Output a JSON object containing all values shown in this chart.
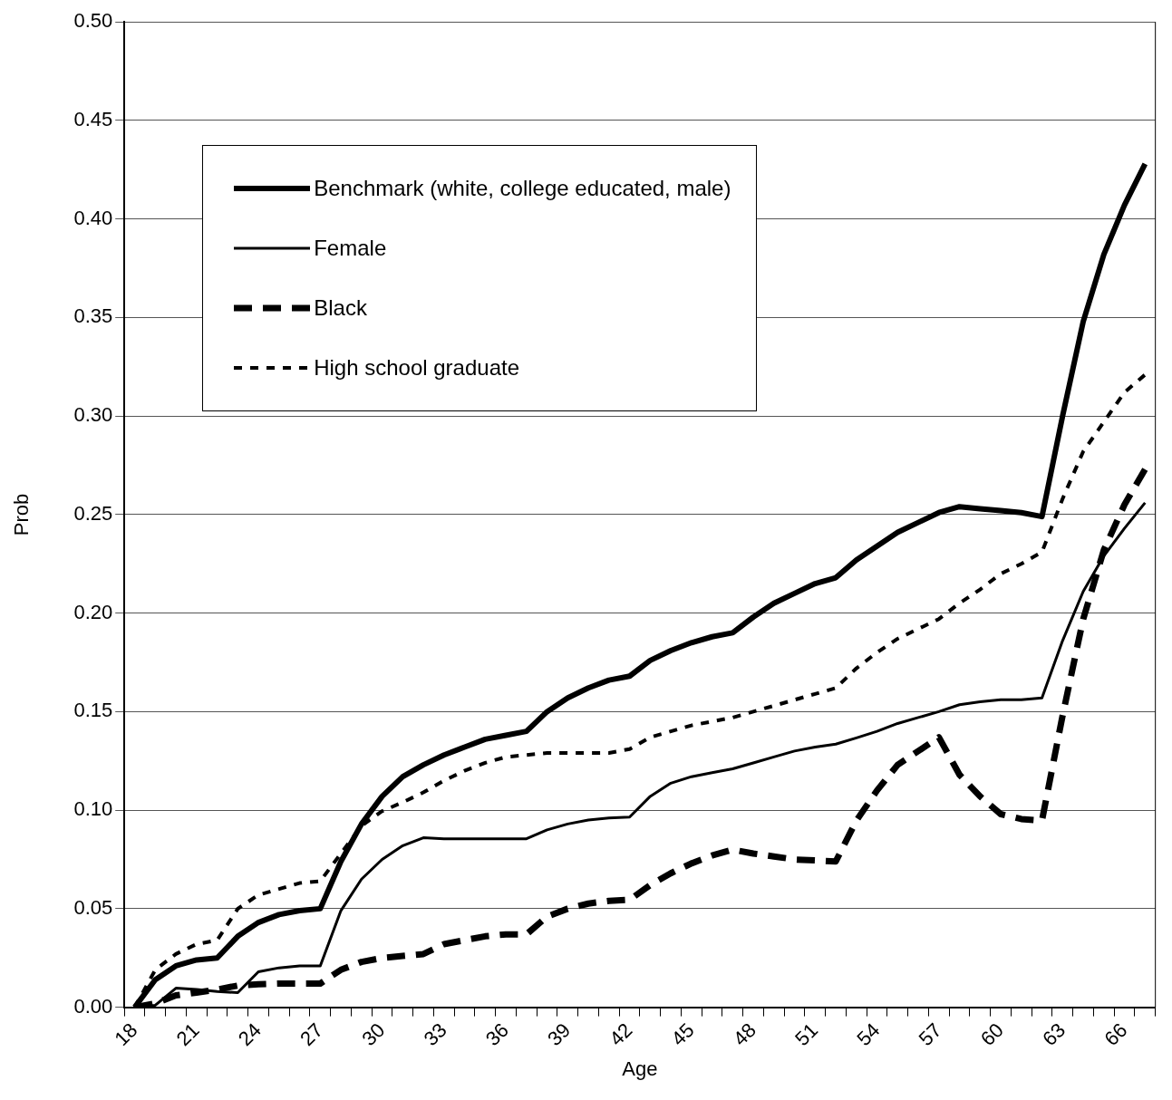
{
  "chart_data": {
    "type": "line",
    "xlabel": "Age",
    "ylabel": "Prob",
    "categories": [
      "18",
      null,
      null,
      "21",
      null,
      null,
      "24",
      null,
      null,
      "27",
      null,
      null,
      "30",
      null,
      null,
      "33",
      null,
      null,
      "36",
      null,
      null,
      "39",
      null,
      null,
      "42",
      null,
      null,
      "45",
      null,
      null,
      "48",
      null,
      null,
      "51",
      null,
      null,
      "54",
      null,
      null,
      "57",
      null,
      null,
      "60",
      null,
      null,
      "63",
      null,
      null,
      "66",
      null
    ],
    "ylim": [
      0,
      0.5
    ],
    "yticks": [
      {
        "value": 0,
        "label": "0.00"
      },
      {
        "value": 0.05,
        "label": "0.05"
      },
      {
        "value": 0.1,
        "label": "0.10"
      },
      {
        "value": 0.15,
        "label": "0.15"
      },
      {
        "value": 0.2,
        "label": "0.20"
      },
      {
        "value": 0.25,
        "label": "0.25"
      },
      {
        "value": 0.3,
        "label": "0.30"
      },
      {
        "value": 0.35,
        "label": "0.35"
      },
      {
        "value": 0.4,
        "label": "0.40"
      },
      {
        "value": 0.45,
        "label": "0.45"
      },
      {
        "value": 0.5,
        "label": "0.50"
      }
    ],
    "grid": "y",
    "legend": "top left",
    "marker": "none",
    "series": [
      {
        "name": "Benchmark (white, college educated, male)",
        "color": "#000000",
        "line_style": "solid",
        "values": [
          0,
          0.014,
          0.021,
          0.024,
          0.025,
          0.036,
          0.043,
          0.047,
          0.049,
          0.05,
          0.074,
          0.093,
          0.107,
          0.117,
          0.123,
          0.128,
          0.132,
          0.136,
          0.138,
          0.14,
          0.15,
          0.157,
          0.162,
          0.166,
          0.168,
          0.176,
          0.181,
          0.185,
          0.188,
          0.19,
          0.198,
          0.205,
          0.21,
          0.215,
          0.218,
          0.227,
          0.234,
          0.241,
          0.246,
          0.251,
          0.254,
          0.253,
          0.252,
          0.251,
          0.249,
          0.3,
          0.348,
          0.382,
          0.407,
          0.428
        ]
      },
      {
        "name": "Female",
        "color": "#000000",
        "line_style": "solid",
        "values": [
          0,
          0.001,
          0.0097,
          0.009,
          0.008,
          0.0074,
          0.018,
          0.02,
          0.021,
          0.021,
          0.049,
          0.065,
          0.075,
          0.082,
          0.086,
          0.0855,
          0.0855,
          0.0855,
          0.0855,
          0.0855,
          0.09,
          0.093,
          0.095,
          0.096,
          0.0965,
          0.107,
          0.1137,
          0.117,
          0.119,
          0.121,
          0.124,
          0.127,
          0.13,
          0.132,
          0.1335,
          0.1367,
          0.14,
          0.144,
          0.147,
          0.15,
          0.1535,
          0.155,
          0.156,
          0.156,
          0.157,
          0.186,
          0.211,
          0.229,
          0.243,
          0.256
        ]
      },
      {
        "name": "Black",
        "color": "#000000",
        "line_style": "dashed",
        "values": [
          0,
          0.002,
          0.006,
          0.0074,
          0.009,
          0.011,
          0.0117,
          0.012,
          0.012,
          0.012,
          0.019,
          0.023,
          0.025,
          0.026,
          0.027,
          0.032,
          0.034,
          0.036,
          0.037,
          0.037,
          0.046,
          0.05,
          0.0526,
          0.054,
          0.0545,
          0.062,
          0.068,
          0.073,
          0.077,
          0.08,
          0.078,
          0.0765,
          0.075,
          0.0745,
          0.074,
          0.0947,
          0.11,
          0.123,
          0.13,
          0.137,
          0.118,
          0.107,
          0.098,
          0.0955,
          0.0947,
          0.148,
          0.197,
          0.232,
          0.255,
          0.273
        ]
      },
      {
        "name": "High school graduate",
        "color": "#000000",
        "line_style": "dotted",
        "values": [
          0,
          0.019,
          0.027,
          0.032,
          0.034,
          0.05,
          0.057,
          0.06,
          0.063,
          0.064,
          0.078,
          0.092,
          0.0995,
          0.104,
          0.109,
          0.115,
          0.12,
          0.124,
          0.127,
          0.128,
          0.129,
          0.129,
          0.129,
          0.129,
          0.131,
          0.137,
          0.14,
          0.143,
          0.145,
          0.147,
          0.15,
          0.153,
          0.156,
          0.159,
          0.162,
          0.172,
          0.18,
          0.187,
          0.192,
          0.197,
          0.205,
          0.212,
          0.22,
          0.225,
          0.231,
          0.258,
          0.282,
          0.297,
          0.312,
          0.321
        ]
      }
    ]
  }
}
